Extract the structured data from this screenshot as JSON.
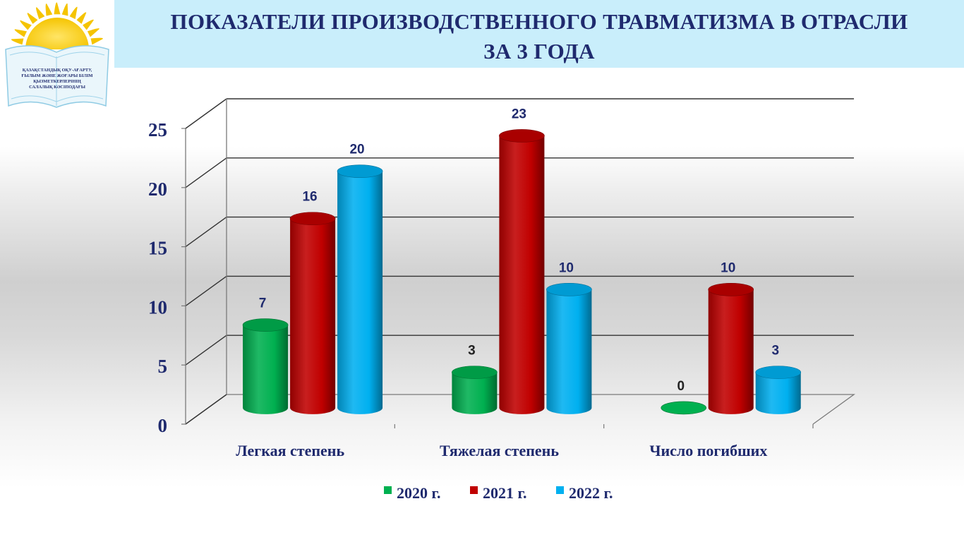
{
  "header": {
    "title_line1": "ПОКАЗАТЕЛИ ПРОИЗВОДСТВЕННОГО  ТРАВМАТИЗМА В ОТРАСЛИ",
    "title_line2": "ЗА 3 ГОДА",
    "logo_text": [
      "ҚАЗАҚСТАНДЫҚ ОҚУ-АҒАРТУ,",
      "ҒЫЛЫМ ЖӘНЕ ЖОҒАРЫ БІЛІМ",
      "ҚЫЗМЕТКЕРЛЕРІНІҢ",
      "САЛАЛЫҚ КӘСІПОДАҒЫ"
    ]
  },
  "colors": {
    "title": "#1f2a6e",
    "axis_text": "#1f2a6e",
    "title_bar": "#c9eefb"
  },
  "chart_data": {
    "type": "bar",
    "categories": [
      "Легкая степень",
      "Тяжелая степень",
      "Число погибших"
    ],
    "series": [
      {
        "name": "2020 г.",
        "color": "#00b050",
        "values": [
          7,
          3,
          0
        ]
      },
      {
        "name": "2021 г.",
        "color": "#c00000",
        "values": [
          16,
          23,
          10
        ]
      },
      {
        "name": "2022 г.",
        "color": "#00b0f0",
        "values": [
          20,
          10,
          3
        ]
      }
    ],
    "y_ticks": [
      "0",
      "5",
      "10",
      "15",
      "20",
      "25"
    ],
    "ylim": [
      0,
      25
    ],
    "grid": true,
    "legend_position": "bottom",
    "style": "3d-cylinder"
  }
}
